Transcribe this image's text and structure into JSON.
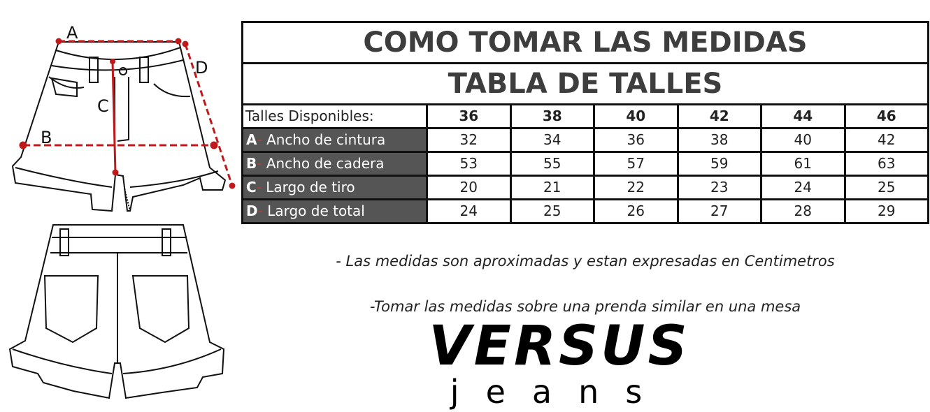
{
  "diagram": {
    "labels": [
      "A",
      "B",
      "C",
      "D"
    ],
    "measure_color": "#c0191b"
  },
  "table": {
    "title": "COMO TOMAR LAS MEDIDAS",
    "subtitle": "TABLA DE TALLES",
    "header_label": "Talles Disponibles:",
    "sizes": [
      "36",
      "38",
      "40",
      "42",
      "44",
      "46"
    ],
    "rows": [
      {
        "letter": "A",
        "dash": "-",
        "label": "Ancho de cintura",
        "values": [
          "32",
          "34",
          "36",
          "38",
          "40",
          "42"
        ]
      },
      {
        "letter": "B",
        "dash": "-",
        "label": "Ancho de cadera",
        "values": [
          "53",
          "55",
          "57",
          "59",
          "61",
          "63"
        ]
      },
      {
        "letter": "C",
        "dash": "-",
        "label": "Largo de tiro",
        "values": [
          "20",
          "21",
          "22",
          "23",
          "24",
          "25"
        ]
      },
      {
        "letter": "D",
        "dash": "-",
        "label": "Largo de total",
        "values": [
          "24",
          "25",
          "26",
          "27",
          "28",
          "29"
        ]
      }
    ],
    "label_bg": "#555555"
  },
  "notes": [
    "- Las medidas son aproximadas y estan expresadas en Centimetros",
    "-Tomar las medidas sobre una prenda similar en una mesa"
  ],
  "brand": {
    "name": "VERSUS",
    "sub": "jeans"
  }
}
